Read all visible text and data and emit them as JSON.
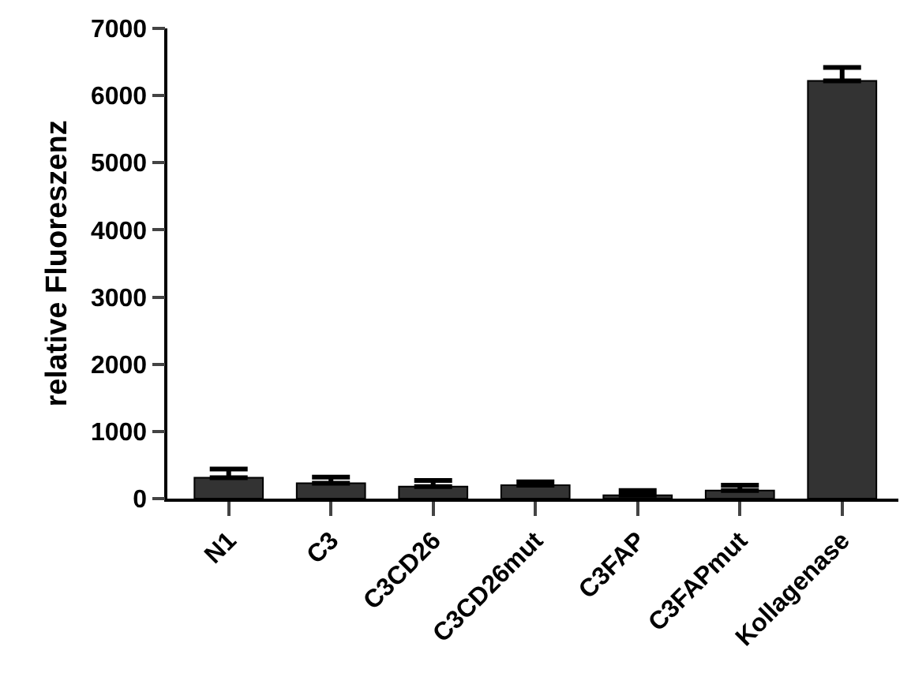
{
  "chart_data": {
    "type": "bar",
    "ylabel": "relative Fluoreszenz",
    "categories": [
      "N1",
      "C3",
      "C3CD26",
      "C3CD26mut",
      "C3FAP",
      "C3FAPmut",
      "Kollagenase"
    ],
    "values": [
      310,
      230,
      180,
      200,
      50,
      120,
      6220
    ],
    "errors": [
      [
        310,
        440
      ],
      [
        230,
        320
      ],
      [
        180,
        270
      ],
      [
        200,
        250
      ],
      [
        50,
        120
      ],
      [
        120,
        200
      ],
      [
        6220,
        6420
      ]
    ],
    "color": "#333333",
    "ylim": [
      0,
      7000
    ],
    "yticks": [
      0,
      1000,
      2000,
      3000,
      4000,
      5000,
      6000,
      7000
    ],
    "grid": false,
    "legend": false
  }
}
